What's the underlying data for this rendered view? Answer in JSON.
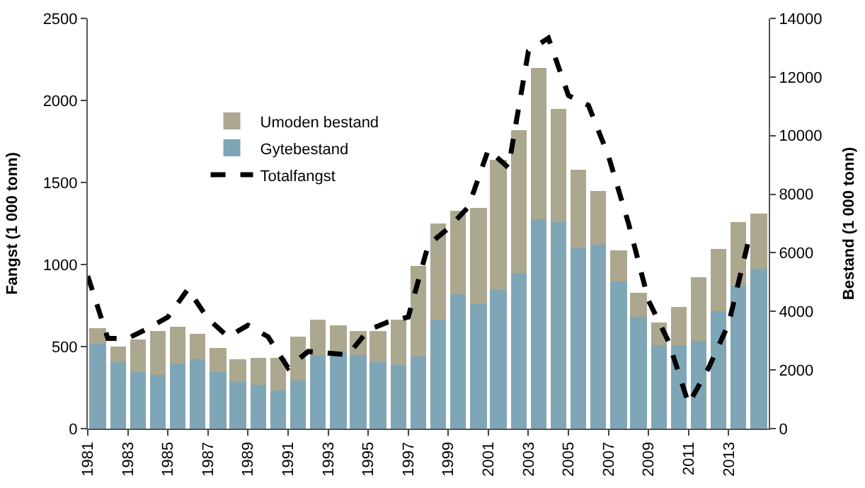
{
  "chart_data": {
    "type": "bar",
    "stacked": true,
    "categories": [
      "1981",
      null,
      "1983",
      null,
      "1985",
      null,
      "1987",
      null,
      "1989",
      null,
      "1991",
      null,
      "1993",
      null,
      "1995",
      null,
      "1997",
      null,
      "1999",
      null,
      "2001",
      null,
      "2003",
      null,
      "2005",
      null,
      "2007",
      null,
      "2009",
      null,
      "2011",
      null,
      "2013",
      null
    ],
    "ylabel": "Fangst (1 000 tonn)",
    "y2label": "Bestand (1 000 tonn)",
    "ylim": [
      0,
      2500
    ],
    "yticks": [
      0,
      500,
      1000,
      1500,
      2000,
      2500
    ],
    "y2lim": [
      0,
      14000
    ],
    "y2ticks": [
      0,
      2000,
      4000,
      6000,
      8000,
      10000,
      12000,
      14000
    ],
    "legend": "top left",
    "series": [
      {
        "name": "Gytebestand",
        "color": "#7fa6b6",
        "axis": "y2",
        "values": [
          2910,
          2260,
          1940,
          1850,
          2220,
          2360,
          1940,
          1570,
          1520,
          1290,
          1660,
          2490,
          2630,
          2490,
          2260,
          2170,
          2450,
          3700,
          4570,
          4250,
          4710,
          5310,
          7160,
          7070,
          6190,
          6280,
          5040,
          3830,
          2860,
          2860,
          3000,
          4020,
          4900,
          5450
        ]
      },
      {
        "name": "Umoden bestand",
        "color": "#aca78f",
        "axis": "y2",
        "values": [
          510,
          560,
          1110,
          1480,
          1250,
          870,
          790,
          790,
          880,
          1110,
          1480,
          1210,
          880,
          840,
          1070,
          1570,
          3090,
          3320,
          2870,
          3280,
          4480,
          4900,
          5170,
          3830,
          2630,
          1850,
          1060,
          790,
          740,
          1300,
          2170,
          2120,
          2170,
          1890
        ]
      },
      {
        "name": "Totalfangst",
        "type": "line",
        "color": "#000000",
        "axis": "y",
        "line_style": "dashed",
        "marker": "none",
        "values": [
          930,
          550,
          550,
          610,
          680,
          850,
          670,
          560,
          630,
          560,
          370,
          470,
          460,
          450,
          600,
          650,
          680,
          1120,
          1220,
          1350,
          1700,
          1590,
          2300,
          2380,
          2030,
          1970,
          1660,
          1250,
          780,
          530,
          150,
          370,
          640,
          1150
        ]
      }
    ]
  }
}
